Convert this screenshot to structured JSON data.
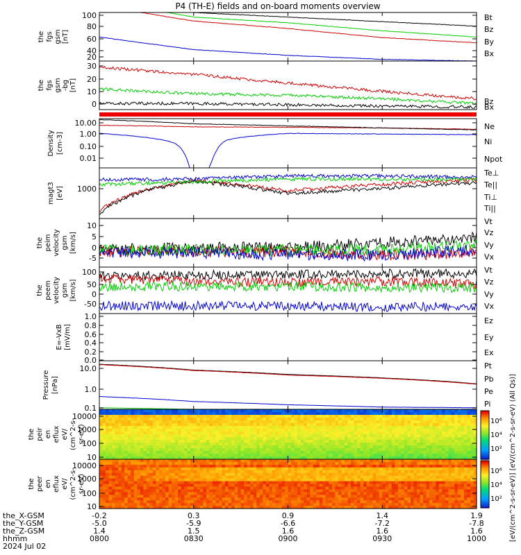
{
  "title": "P4 (TH-E) fields and on-board moments overview",
  "panels": [
    {
      "key": "fgs_gsm",
      "ylabel": [
        "the",
        "fgs",
        "gsm",
        "[nT]"
      ],
      "yticks": [
        "100",
        "80",
        "60",
        "40",
        "20"
      ],
      "legend": [
        {
          "name": "Bt",
          "color": "#000000"
        },
        {
          "name": "Bz",
          "color": "#cc0000"
        },
        {
          "name": "By",
          "color": "#00cc00"
        },
        {
          "name": "Bx",
          "color": "#0000cc"
        }
      ]
    },
    {
      "key": "fgs_dsl",
      "ylabel": [
        "the",
        "fgs",
        "gsm",
        "-bg",
        "[nT]"
      ],
      "yticks": [
        "30",
        "20",
        "10",
        "0"
      ],
      "legend": [
        {
          "name": "Bz",
          "color": "#cc0000"
        },
        {
          "name": "Bx",
          "color": "#000000"
        }
      ]
    },
    {
      "key": "density",
      "ylabel": [
        "Density",
        "[cm-3]"
      ],
      "yticks": [
        "10.00",
        "1.00",
        "0.10",
        "0.01"
      ],
      "legend": [
        {
          "name": "Ne",
          "color": "#cc0000"
        },
        {
          "name": "Ni",
          "color": "#000000"
        },
        {
          "name": "Npot",
          "color": "#0000cc"
        }
      ]
    },
    {
      "key": "temperature",
      "ylabel": [
        "magt3",
        "[eV]"
      ],
      "yticks": [
        "1000"
      ],
      "legend": [
        {
          "name": "Te⊥",
          "color": "#cc0000"
        },
        {
          "name": "Te||",
          "color": "#000000"
        },
        {
          "name": "Ti⊥",
          "color": "#0000cc"
        },
        {
          "name": "Ti||",
          "color": "#00cc00"
        }
      ]
    },
    {
      "key": "peim_velocity",
      "ylabel": [
        "the",
        "peim",
        "velocity",
        "gsm",
        "[km/s]"
      ],
      "yticks": [
        "10",
        "5",
        "0",
        "-5"
      ],
      "legend": [
        {
          "name": "Vt",
          "color": "#000000"
        },
        {
          "name": "Vz",
          "color": "#cc0000"
        },
        {
          "name": "Vy",
          "color": "#00cc00"
        },
        {
          "name": "Vx",
          "color": "#0000cc"
        }
      ]
    },
    {
      "key": "peem_velocity",
      "ylabel": [
        "the",
        "peem",
        "velocity",
        "gsm",
        "[km/s]"
      ],
      "yticks": [
        "100",
        "50",
        "0",
        "-50"
      ],
      "legend": [
        {
          "name": "Vt",
          "color": "#000000"
        },
        {
          "name": "Vz",
          "color": "#cc0000"
        },
        {
          "name": "Vy",
          "color": "#00cc00"
        },
        {
          "name": "Vx",
          "color": "#0000cc"
        }
      ]
    },
    {
      "key": "efield",
      "ylabel": [
        "E=-VxB",
        "[mV/m]"
      ],
      "yticks": [
        "1.0",
        "0.8",
        "0.6",
        "0.4",
        "0.2",
        "0.0"
      ],
      "legend": [
        {
          "name": "Ez",
          "color": "#cc0000"
        },
        {
          "name": "Ey",
          "color": "#00cc00"
        },
        {
          "name": "Ex",
          "color": "#0000cc"
        }
      ]
    },
    {
      "key": "pressure",
      "ylabel": [
        "Pressure",
        "[nPa]"
      ],
      "yticks": [
        "10.0",
        "1.0",
        "0.1"
      ],
      "legend": [
        {
          "name": "Pt",
          "color": "#000000"
        },
        {
          "name": "Pb",
          "color": "#cc0000"
        },
        {
          "name": "Pe",
          "color": "#00cc00"
        },
        {
          "name": "Pi",
          "color": "#0000cc"
        }
      ]
    },
    {
      "key": "peir_eflux",
      "ylabel": [
        "the",
        "peir",
        "en",
        "eflux",
        "eV/",
        "(cm^2-s-",
        "sr-eV)"
      ],
      "yticks": [
        "10000",
        "1000",
        "100",
        "10"
      ]
    },
    {
      "key": "peer_eflux",
      "ylabel": [
        "the",
        "peer",
        "en",
        "eflux",
        "eV/",
        "(cm^2-s-",
        "sr-eV)"
      ],
      "yticks": [
        "10000",
        "1000",
        "100",
        "10"
      ]
    }
  ],
  "colorbar": {
    "label": "[eV/(cm^2-s-sr-eV)] [eV/(cm^2-s-sr-eV) (All Qs)]",
    "ticks_upper": [
      "10⁶",
      "10⁴",
      "10²"
    ],
    "ticks_lower": [
      "10⁶",
      "10⁴",
      "10²"
    ]
  },
  "xaxis": {
    "row_labels": [
      "the_X-GSM",
      "the_Y-GSM",
      "the_Z-GSM",
      "hhmm",
      "2024 Jul 02"
    ],
    "columns": [
      [
        "-0.2",
        "-5.0",
        "1.4",
        "0800"
      ],
      [
        "0.3",
        "-5.9",
        "1.5",
        "0830"
      ],
      [
        "0.9",
        "-6.6",
        "1.6",
        "0900"
      ],
      [
        "1.4",
        "-7.2",
        "1.6",
        "0930"
      ],
      [
        "1.9",
        "-7.8",
        "1.6",
        "1000"
      ]
    ]
  },
  "chart_data": {
    "type": "line",
    "title": "P4 (TH-E) fields and on-board moments overview",
    "x_time": [
      "0800",
      "0830",
      "0900",
      "0930",
      "1000"
    ],
    "panels": {
      "fgs_gsm": {
        "ylim": [
          15,
          100
        ],
        "series": [
          {
            "name": "Bt",
            "values": [
              125,
              100,
              92,
              84,
              76
            ]
          },
          {
            "name": "Bz",
            "values": [
              112,
              85,
              72,
              56,
              47
            ]
          },
          {
            "name": "By",
            "values": [
              120,
              92,
              82,
              68,
              57
            ]
          },
          {
            "name": "Bx",
            "values": [
              57,
              35,
              25,
              18,
              15
            ]
          }
        ]
      },
      "fgs_dsl": {
        "ylim": [
          -5,
          35
        ],
        "series": [
          {
            "name": "Bz",
            "values": [
              30,
              24,
              17,
              10,
              4
            ]
          },
          {
            "name": "By",
            "values": [
              12,
              8,
              7,
              4,
              0
            ]
          },
          {
            "name": "Bx",
            "values": [
              0,
              0,
              -1,
              -2,
              -3
            ]
          }
        ]
      },
      "density": {
        "ylog": true,
        "ylim": [
          0.003,
          12
        ],
        "series": [
          {
            "name": "Ne",
            "values": [
              4,
              3,
              2.8,
              2.5,
              2
            ]
          },
          {
            "name": "Ni",
            "values": [
              10,
              5,
              3.5,
              2.5,
              1.8
            ]
          },
          {
            "name": "Npot",
            "values": [
              1.0,
              0.005,
              1.0,
              0.9,
              0.8
            ]
          }
        ]
      },
      "temperature": {
        "ylog": true,
        "ylim": [
          300,
          5000
        ],
        "series": [
          {
            "name": "Te⊥",
            "values": [
              450,
              2500,
              1400,
              2000,
              2600
            ]
          },
          {
            "name": "Te||",
            "values": [
              380,
              2400,
              1200,
              1600,
              2200
            ]
          },
          {
            "name": "Ti⊥",
            "values": [
              2600,
              2700,
              3200,
              3200,
              3000
            ]
          },
          {
            "name": "Ti||",
            "values": [
              2000,
              2300,
              2700,
              2700,
              2600
            ]
          }
        ]
      },
      "peim_velocity": {
        "ylim": [
          -6,
          14
        ],
        "series": [
          {
            "name": "Vt",
            "values": [
              1,
              2,
              2,
              4,
              6
            ]
          },
          {
            "name": "Vz",
            "values": [
              0.5,
              0.5,
              0,
              -1,
              0
            ]
          },
          {
            "name": "Vy",
            "values": [
              1,
              1,
              1,
              1,
              3
            ]
          },
          {
            "name": "Vx",
            "values": [
              0,
              0,
              -1,
              -1,
              1
            ]
          }
        ]
      },
      "peem_velocity": {
        "ylim": [
          -70,
          110
        ],
        "series": [
          {
            "name": "Vt",
            "values": [
              75,
              80,
              80,
              85,
              85
            ]
          },
          {
            "name": "Vz",
            "values": [
              65,
              55,
              50,
              55,
              45
            ]
          },
          {
            "name": "Vy",
            "values": [
              35,
              35,
              35,
              30,
              30
            ]
          },
          {
            "name": "Vx",
            "values": [
              -40,
              -40,
              -40,
              -45,
              -40
            ]
          }
        ]
      },
      "efield": {
        "ylim": [
          0,
          1
        ],
        "series": []
      },
      "pressure": {
        "ylog": true,
        "ylim": [
          0.1,
          30
        ],
        "series": [
          {
            "name": "Pt",
            "values": [
              20,
              10,
              6,
              4,
              2
            ]
          },
          {
            "name": "Pb",
            "values": [
              19,
              9.5,
              5.6,
              3.8,
              1.9
            ]
          },
          {
            "name": "Pe",
            "values": [
              0.12,
              0.1,
              0.1,
              0.1,
              0.1
            ]
          },
          {
            "name": "Pi",
            "values": [
              0.45,
              0.25,
              0.17,
              0.13,
              0.12
            ]
          }
        ]
      }
    }
  }
}
